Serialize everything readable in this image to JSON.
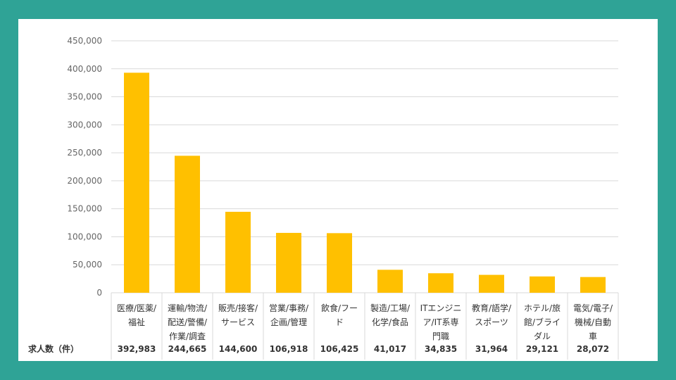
{
  "chart_data": {
    "type": "bar",
    "categories": [
      [
        "医療/医薬/",
        "福祉"
      ],
      [
        "運輸/物流/",
        "配送/警備/",
        "作業/調査"
      ],
      [
        "販売/接客/",
        "サービス"
      ],
      [
        "営業/事務/",
        "企画/管理"
      ],
      [
        "飲食/フー",
        "ド"
      ],
      [
        "製造/工場/",
        "化学/食品"
      ],
      [
        "ITエンジニ",
        "ア/IT系専",
        "門職"
      ],
      [
        "教育/語学/",
        "スポーツ"
      ],
      [
        "ホテル/旅",
        "館/ブライ",
        "ダル"
      ],
      [
        "電気/電子/",
        "機械/自動",
        "車"
      ]
    ],
    "values": [
      392983,
      244665,
      144600,
      106918,
      106425,
      41017,
      34835,
      31964,
      29121,
      28072
    ],
    "value_labels": [
      "392,983",
      "244,665",
      "144,600",
      "106,918",
      "106,425",
      "41,017",
      "34,835",
      "31,964",
      "29,121",
      "28,072"
    ],
    "row_label": "求人数（件）",
    "ylim": [
      0,
      450000
    ],
    "yticks": [
      0,
      50000,
      100000,
      150000,
      200000,
      250000,
      300000,
      350000,
      400000,
      450000
    ],
    "ytick_labels": [
      "0",
      "50,000",
      "100,000",
      "150,000",
      "200,000",
      "250,000",
      "300,000",
      "350,000",
      "400,000",
      "450,000"
    ],
    "bar_color": "#ffc000",
    "grid": true,
    "legend": "none"
  },
  "colors": {
    "background": "#2fa396",
    "card": "#ffffff",
    "grid": "#d9d9d9",
    "text": "#333333"
  }
}
